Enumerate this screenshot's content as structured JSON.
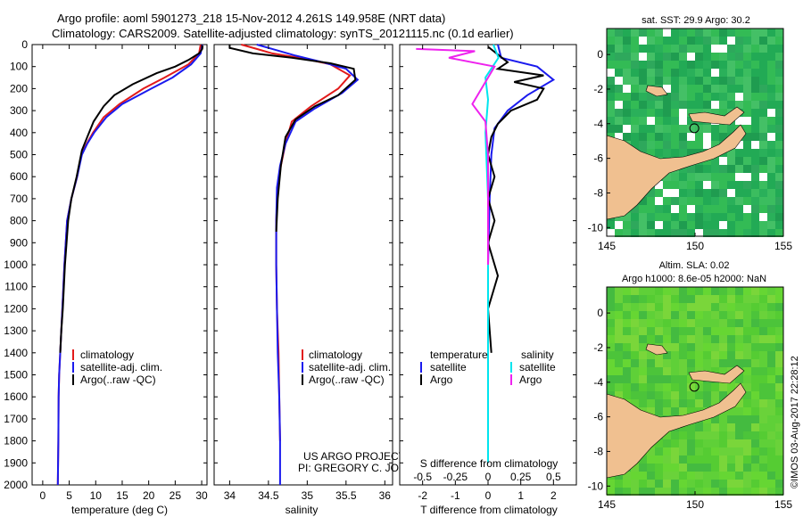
{
  "header": {
    "title_line1": "Argo profile: aoml 5901273_218 15-Nov-2012 4.261S 149.958E (NRT data)",
    "title_line2": "Climatology: CARS2009. Satellite-adjusted climatology: synTS_20121115.nc (0.1d earlier)"
  },
  "footer": {
    "project": "US ARGO PROJECT",
    "pi": "PI: GREGORY C. JOHNSON",
    "copyright": "©IMOS 03-Aug-2017 22:28:12"
  },
  "colors": {
    "climatology": "#e21a1a",
    "satellite": "#1a1aee",
    "argo": "#000000",
    "salinity_sat": "#00e5ee",
    "salinity_argo": "#ee22ee",
    "land": "#f0c090"
  },
  "chart_data": [
    {
      "id": "temperature",
      "type": "line",
      "xlabel": "temperature (deg C)",
      "ylabel": "",
      "xlim": [
        -2,
        31
      ],
      "ylim": [
        2000,
        0
      ],
      "xticks": [
        0,
        5,
        10,
        15,
        20,
        25,
        30
      ],
      "yticks": [
        0,
        100,
        200,
        300,
        400,
        500,
        600,
        700,
        800,
        900,
        1000,
        1100,
        1200,
        1300,
        1400,
        1500,
        1600,
        1700,
        1800,
        1900,
        2000
      ],
      "legend": [
        "climatology",
        "satellite-adj. clim.",
        "Argo(..raw -QC)"
      ],
      "series": [
        {
          "name": "climatology",
          "x": [
            29.8,
            29.5,
            27.5,
            23,
            19,
            14.5,
            11.5,
            9.5,
            8.3,
            7.3,
            6.5,
            5.4,
            4.6,
            4.1,
            3.7,
            3.5,
            3.3,
            3.1,
            3.0,
            2.95,
            2.9,
            2.85
          ],
          "y": [
            0,
            40,
            90,
            150,
            200,
            270,
            330,
            400,
            450,
            500,
            600,
            700,
            800,
            1000,
            1200,
            1300,
            1400,
            1500,
            1600,
            1800,
            1900,
            2000
          ]
        },
        {
          "name": "satellite-adj. clim.",
          "x": [
            30.1,
            29.8,
            28,
            24.5,
            20.5,
            15,
            12,
            9.7,
            8.4,
            7.4,
            6.5,
            5.4,
            4.6,
            4.1,
            3.7,
            3.5,
            3.3,
            3.1,
            3.0,
            2.95,
            2.9,
            2.85
          ],
          "y": [
            0,
            40,
            90,
            150,
            200,
            270,
            330,
            400,
            450,
            500,
            600,
            700,
            800,
            1000,
            1200,
            1300,
            1400,
            1500,
            1600,
            1800,
            1900,
            2000
          ]
        },
        {
          "name": "Argo(..raw -QC)",
          "x": [
            30.2,
            30.1,
            29.5,
            27.5,
            25,
            21.5,
            17,
            13.5,
            11.5,
            9.6,
            8.4,
            7.4,
            6.4,
            5.4,
            4.8,
            4.2,
            3.8,
            3.5,
            3.3
          ],
          "y": [
            5,
            20,
            40,
            70,
            100,
            130,
            180,
            230,
            280,
            350,
            420,
            480,
            600,
            700,
            800,
            1000,
            1200,
            1300,
            1400
          ]
        }
      ]
    },
    {
      "id": "salinity",
      "type": "line",
      "xlabel": "salinity",
      "ylabel": "",
      "xlim": [
        33.8,
        36.1
      ],
      "ylim": [
        2000,
        0
      ],
      "xticks": [
        34,
        34.5,
        35,
        35.5,
        36
      ],
      "legend": [
        "climatology",
        "satellite-adj. clim.",
        "Argo(..raw -QC)"
      ],
      "series": [
        {
          "name": "climatology",
          "x": [
            34.15,
            34.35,
            34.55,
            34.9,
            35.3,
            35.55,
            35.4,
            35.05,
            34.8,
            34.72,
            34.66,
            34.62,
            34.6,
            34.6,
            34.61,
            34.63,
            34.64,
            34.65
          ],
          "y": [
            0,
            20,
            40,
            60,
            90,
            140,
            200,
            280,
            350,
            450,
            550,
            650,
            800,
            1000,
            1200,
            1400,
            1600,
            1800
          ]
        },
        {
          "name": "satellite-adj. clim.",
          "x": [
            34.35,
            34.6,
            34.85,
            35.2,
            35.5,
            35.65,
            35.45,
            35.1,
            34.85,
            34.72,
            34.65,
            34.61,
            34.6,
            34.6,
            34.61,
            34.62,
            34.64,
            34.65,
            34.65
          ],
          "y": [
            0,
            25,
            50,
            80,
            110,
            160,
            220,
            290,
            350,
            450,
            550,
            650,
            800,
            1000,
            1200,
            1400,
            1600,
            1800,
            2000
          ]
        },
        {
          "name": "Argo(..raw -QC)",
          "x": [
            34.0,
            34.0,
            34.3,
            34.8,
            35.3,
            35.6,
            35.62,
            35.4,
            35.1,
            34.85,
            34.72,
            34.66,
            34.62,
            34.6
          ],
          "y": [
            0,
            15,
            40,
            60,
            85,
            110,
            160,
            230,
            280,
            340,
            420,
            550,
            700,
            850
          ]
        }
      ]
    },
    {
      "id": "difference",
      "type": "line",
      "xlabel": "T difference from climatology",
      "xlabel_top": "S difference from climatology",
      "xlim": [
        -2.7,
        2.7
      ],
      "ylim": [
        2000,
        0
      ],
      "xticks": [
        -2,
        -1,
        0,
        1,
        2
      ],
      "xticks_top": [
        -0.5,
        -0.25,
        0,
        0.25,
        0.5
      ],
      "legend_titles": [
        "temperature",
        "salinity"
      ],
      "legend": [
        "satellite",
        "Argo",
        "satellite",
        "Argo"
      ],
      "series": [
        {
          "name": "temperature satellite",
          "x": [
            0.3,
            0.4,
            1.5,
            2.0,
            1.2,
            0.6,
            0.2,
            0.1,
            0.05,
            0.0,
            0.0,
            0.0
          ],
          "y": [
            0,
            60,
            100,
            160,
            230,
            300,
            380,
            500,
            700,
            1000,
            1500,
            1900
          ]
        },
        {
          "name": "temperature Argo",
          "x": [
            0.0,
            0.6,
            0.3,
            1.7,
            0.8,
            1.7,
            1.5,
            0.7,
            0.3,
            0.1,
            0.0,
            0.2,
            0.0,
            0.2,
            0.0,
            0.3,
            0.0,
            0.1
          ],
          "y": [
            10,
            80,
            110,
            140,
            170,
            200,
            250,
            300,
            360,
            420,
            500,
            600,
            700,
            800,
            900,
            1050,
            1200,
            1400
          ]
        },
        {
          "name": "salinity satellite",
          "x": [
            0.04,
            0.08,
            -0.02,
            0.0,
            -0.02,
            0.0,
            0.0,
            0.0
          ],
          "y": [
            0,
            60,
            150,
            250,
            400,
            700,
            1200,
            1900
          ]
        },
        {
          "name": "salinity Argo",
          "x": [
            -0.55,
            -0.1,
            -0.3,
            0.05,
            -0.12,
            -0.02,
            0.0,
            0.0,
            0.0
          ],
          "y": [
            20,
            30,
            60,
            100,
            270,
            350,
            500,
            800,
            1000
          ]
        }
      ]
    },
    {
      "id": "map_sst",
      "type": "heatmap",
      "title": "sat. SST: 29.9 Argo: 30.2",
      "xlim": [
        145,
        155
      ],
      "ylim": [
        -10.5,
        1.5
      ],
      "xticks": [
        145,
        150,
        155
      ],
      "yticks": [
        0,
        -2,
        -4,
        -6,
        -8,
        -10
      ],
      "marker": {
        "lon": 149.958,
        "lat": -4.261
      }
    },
    {
      "id": "map_sla",
      "type": "heatmap",
      "title": "Altim. SLA: 0.02",
      "subtitle": "Argo h1000: 8.6e-05 h2000: NaN",
      "xlim": [
        145,
        155
      ],
      "ylim": [
        -10.5,
        1.5
      ],
      "xticks": [
        145,
        150,
        155
      ],
      "yticks": [
        0,
        -2,
        -4,
        -6,
        -8,
        -10
      ],
      "marker": {
        "lon": 149.958,
        "lat": -4.261
      }
    }
  ]
}
